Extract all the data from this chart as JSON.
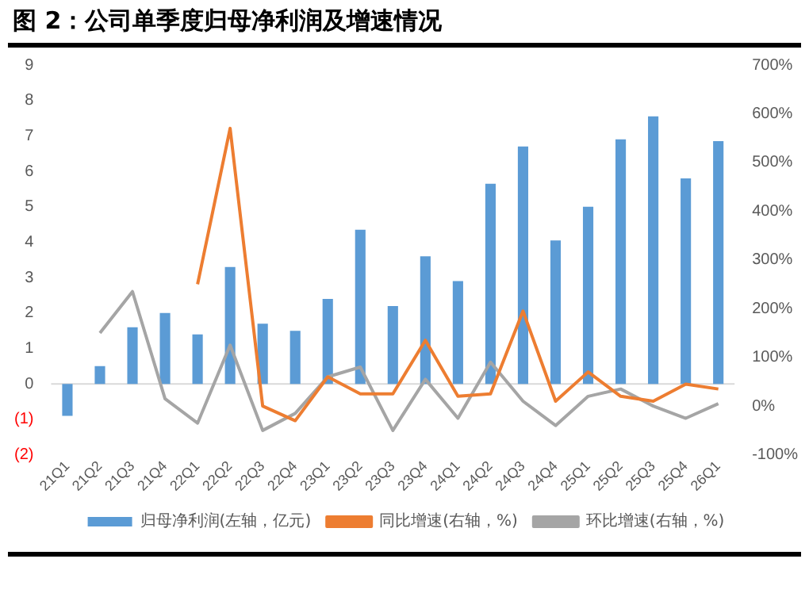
{
  "chart_data": {
    "type": "bar",
    "title": "图 2：公司单季度归母净利润及增速情况",
    "categories": [
      "21Q1",
      "21Q2",
      "21Q3",
      "21Q4",
      "22Q1",
      "22Q2",
      "22Q3",
      "22Q4",
      "23Q1",
      "23Q2",
      "23Q3",
      "23Q4",
      "24Q1",
      "24Q2",
      "24Q3",
      "24Q4",
      "25Q1",
      "25Q2",
      "25Q3",
      "25Q4",
      "26Q1"
    ],
    "series": [
      {
        "name": "归母净利润(左轴，亿元)",
        "color": "#5b9bd5",
        "values": [
          -0.9,
          0.5,
          1.6,
          2.0,
          1.4,
          3.3,
          1.7,
          1.5,
          2.4,
          4.35,
          2.2,
          3.6,
          2.9,
          5.65,
          6.7,
          4.05,
          5.0,
          6.9,
          7.55,
          5.8,
          6.85
        ]
      },
      {
        "name": "同比增速(右轴，%)",
        "type": "line",
        "axis": "y2",
        "color": "#ed7d31",
        "values": [
          null,
          null,
          null,
          null,
          250,
          570,
          0,
          -30,
          60,
          25,
          25,
          135,
          20,
          25,
          195,
          10,
          70,
          20,
          10,
          45,
          35
        ]
      },
      {
        "name": "环比增速(右轴，%)",
        "type": "line",
        "axis": "y2",
        "color": "#a5a5a5",
        "values": [
          null,
          150,
          235,
          15,
          -35,
          125,
          -50,
          -15,
          60,
          80,
          -50,
          55,
          -25,
          90,
          10,
          -40,
          20,
          35,
          0,
          -25,
          5
        ]
      }
    ],
    "ylim": [
      -2,
      9
    ],
    "yticks": [
      {
        "value": -2,
        "label": "(2)"
      },
      {
        "value": -1,
        "label": "(1)"
      },
      0,
      1,
      2,
      3,
      4,
      5,
      6,
      7,
      8,
      9
    ],
    "y2lim": [
      -100,
      700
    ],
    "y2ticks": [
      {
        "value": -100,
        "label": "-100%"
      },
      {
        "value": 0,
        "label": "0%"
      },
      {
        "value": 100,
        "label": "100%"
      },
      {
        "value": 200,
        "label": "200%"
      },
      {
        "value": 300,
        "label": "300%"
      },
      {
        "value": 400,
        "label": "400%"
      },
      {
        "value": 500,
        "label": "500%"
      },
      {
        "value": 600,
        "label": "600%"
      },
      {
        "value": 700,
        "label": "700%"
      }
    ],
    "ref_lines": [
      {
        "axis": "y",
        "value": 0,
        "color": "#d9d9d9"
      }
    ],
    "grid": false,
    "legend": "bottom",
    "marker": "none",
    "line_style": "solid"
  }
}
